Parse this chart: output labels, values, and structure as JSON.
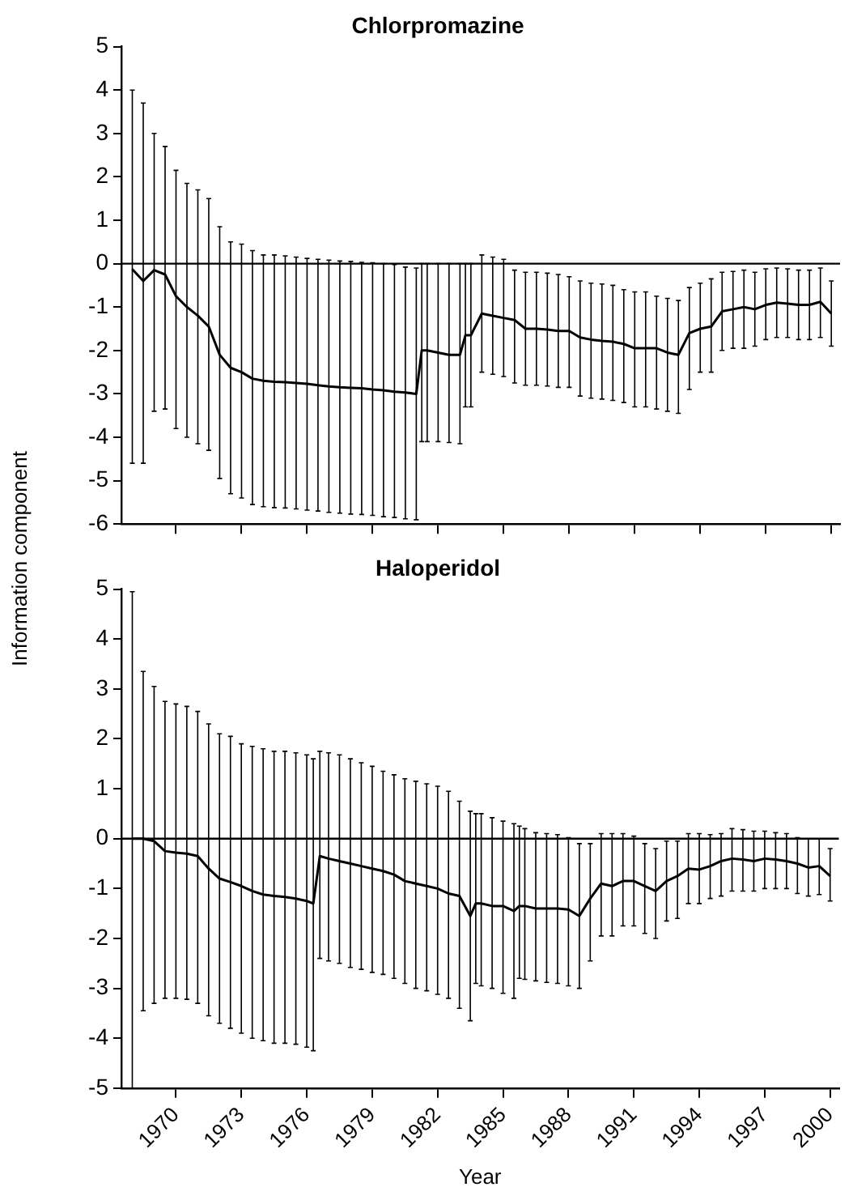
{
  "chart_data": [
    {
      "type": "line",
      "title": "Chlorpromazine",
      "ylabel": "Information component",
      "tick_labels": "y",
      "marker": "none",
      "line_style": "solid",
      "legend": false,
      "x": [
        1968,
        1968.5,
        1969,
        1969.5,
        1970,
        1970.5,
        1971,
        1971.5,
        1972,
        1972.5,
        1973,
        1973.5,
        1974,
        1974.5,
        1975,
        1975.5,
        1976,
        1976.5,
        1977,
        1977.5,
        1978,
        1978.5,
        1979,
        1979.5,
        1980,
        1980.5,
        1981,
        1981.25,
        1981.5,
        1982,
        1982.5,
        1983,
        1983.25,
        1983.5,
        1984,
        1984.5,
        1985,
        1985.5,
        1986,
        1986.5,
        1987,
        1987.5,
        1988,
        1988.5,
        1989,
        1989.5,
        1990,
        1990.5,
        1991,
        1991.5,
        1992,
        1992.5,
        1993,
        1993.5,
        1994,
        1994.5,
        1995,
        1995.5,
        1996,
        1996.5,
        1997,
        1997.5,
        1998,
        1998.5,
        1999,
        1999.5,
        2000
      ],
      "series": [
        {
          "color": "#000000",
          "values": [
            -0.13,
            -0.4,
            -0.15,
            -0.25,
            -0.75,
            -1.0,
            -1.2,
            -1.45,
            -2.1,
            -2.4,
            -2.5,
            -2.65,
            -2.7,
            -2.72,
            -2.73,
            -2.75,
            -2.77,
            -2.8,
            -2.83,
            -2.85,
            -2.86,
            -2.87,
            -2.9,
            -2.92,
            -2.95,
            -2.97,
            -3.0,
            -2.0,
            -2.0,
            -2.05,
            -2.1,
            -2.1,
            -1.65,
            -1.65,
            -1.15,
            -1.2,
            -1.25,
            -1.3,
            -1.5,
            -1.5,
            -1.52,
            -1.55,
            -1.55,
            -1.7,
            -1.75,
            -1.78,
            -1.8,
            -1.85,
            -1.95,
            -1.95,
            -1.95,
            -2.05,
            -2.1,
            -1.6,
            -1.5,
            -1.45,
            -1.1,
            -1.05,
            -1.0,
            -1.05,
            -0.95,
            -0.9,
            -0.92,
            -0.95,
            -0.95,
            -0.88,
            -1.15
          ],
          "errors": [
            [
              -4.6,
              4.0
            ],
            [
              -4.6,
              3.7
            ],
            [
              -3.4,
              3.0
            ],
            [
              -3.35,
              2.7
            ],
            [
              -3.8,
              2.15
            ],
            [
              -4.0,
              1.85
            ],
            [
              -4.15,
              1.7
            ],
            [
              -4.3,
              1.5
            ],
            [
              -4.95,
              0.85
            ],
            [
              -5.3,
              0.5
            ],
            [
              -5.4,
              0.45
            ],
            [
              -5.55,
              0.3
            ],
            [
              -5.6,
              0.2
            ],
            [
              -5.62,
              0.2
            ],
            [
              -5.63,
              0.18
            ],
            [
              -5.65,
              0.15
            ],
            [
              -5.68,
              0.12
            ],
            [
              -5.7,
              0.1
            ],
            [
              -5.73,
              0.08
            ],
            [
              -5.75,
              0.06
            ],
            [
              -5.77,
              0.05
            ],
            [
              -5.78,
              0.03
            ],
            [
              -5.8,
              0.02
            ],
            [
              -5.83,
              0
            ],
            [
              -5.85,
              -0.02
            ],
            [
              -5.88,
              -0.08
            ],
            [
              -5.9,
              -0.1
            ],
            [
              -4.1,
              0
            ],
            [
              -4.1,
              0
            ],
            [
              -4.1,
              0
            ],
            [
              -4.12,
              0
            ],
            [
              -4.15,
              0
            ],
            [
              -3.3,
              0
            ],
            [
              -3.3,
              0
            ],
            [
              -2.5,
              0.2
            ],
            [
              -2.55,
              0.15
            ],
            [
              -2.6,
              0.1
            ],
            [
              -2.75,
              -0.15
            ],
            [
              -2.8,
              -0.2
            ],
            [
              -2.8,
              -0.2
            ],
            [
              -2.82,
              -0.22
            ],
            [
              -2.85,
              -0.25
            ],
            [
              -2.85,
              -0.3
            ],
            [
              -3.05,
              -0.4
            ],
            [
              -3.1,
              -0.45
            ],
            [
              -3.12,
              -0.47
            ],
            [
              -3.15,
              -0.5
            ],
            [
              -3.2,
              -0.6
            ],
            [
              -3.3,
              -0.65
            ],
            [
              -3.3,
              -0.65
            ],
            [
              -3.35,
              -0.75
            ],
            [
              -3.4,
              -0.8
            ],
            [
              -3.45,
              -0.85
            ],
            [
              -2.9,
              -0.55
            ],
            [
              -2.5,
              -0.45
            ],
            [
              -2.5,
              -0.35
            ],
            [
              -2.0,
              -0.2
            ],
            [
              -1.95,
              -0.18
            ],
            [
              -1.95,
              -0.15
            ],
            [
              -1.9,
              -0.2
            ],
            [
              -1.75,
              -0.12
            ],
            [
              -1.7,
              -0.1
            ],
            [
              -1.7,
              -0.12
            ],
            [
              -1.75,
              -0.15
            ],
            [
              -1.75,
              -0.15
            ],
            [
              -1.7,
              -0.1
            ],
            [
              -1.9,
              -0.4
            ]
          ]
        }
      ],
      "xlim": [
        1967.5,
        2000.4
      ],
      "xticks": [
        1970,
        1973,
        1976,
        1979,
        1982,
        1985,
        1988,
        1991,
        1994,
        1997,
        2000
      ],
      "ylim": [
        -6,
        5
      ],
      "yticks": [
        -6,
        -5,
        -4,
        -3,
        -2,
        -1,
        0,
        1,
        2,
        3,
        4,
        5
      ],
      "ref_lines": [
        {
          "axis": "y",
          "value": 0
        }
      ]
    },
    {
      "type": "line",
      "title": "Haloperidol",
      "xlabel": "Year",
      "marker": "none",
      "line_style": "solid",
      "legend": false,
      "x": [
        1968,
        1968.5,
        1969,
        1969.5,
        1970,
        1970.5,
        1971,
        1971.5,
        1972,
        1972.5,
        1973,
        1973.5,
        1974,
        1974.5,
        1975,
        1975.5,
        1976,
        1976.3,
        1976.6,
        1977,
        1977.5,
        1978,
        1978.5,
        1979,
        1979.5,
        1980,
        1980.5,
        1981,
        1981.5,
        1982,
        1982.5,
        1983,
        1983.5,
        1983.75,
        1984,
        1984.5,
        1985,
        1985.5,
        1985.75,
        1986,
        1986.5,
        1987,
        1987.5,
        1988,
        1988.5,
        1989,
        1989.5,
        1990,
        1990.5,
        1991,
        1991.5,
        1992,
        1992.5,
        1993,
        1993.5,
        1994,
        1994.5,
        1995,
        1995.5,
        1996,
        1996.5,
        1997,
        1997.5,
        1998,
        1998.5,
        1999,
        1999.5,
        2000
      ],
      "series": [
        {
          "color": "#000000",
          "values": [
            0,
            0,
            -0.05,
            -0.25,
            -0.28,
            -0.3,
            -0.35,
            -0.6,
            -0.8,
            -0.87,
            -0.95,
            -1.05,
            -1.12,
            -1.15,
            -1.17,
            -1.2,
            -1.25,
            -1.3,
            -0.35,
            -0.4,
            -0.45,
            -0.5,
            -0.55,
            -0.6,
            -0.65,
            -0.72,
            -0.85,
            -0.9,
            -0.95,
            -1.0,
            -1.1,
            -1.15,
            -1.55,
            -1.3,
            -1.3,
            -1.35,
            -1.35,
            -1.45,
            -1.35,
            -1.35,
            -1.4,
            -1.4,
            -1.4,
            -1.42,
            -1.55,
            -1.2,
            -0.9,
            -0.95,
            -0.85,
            -0.85,
            -0.95,
            -1.05,
            -0.85,
            -0.75,
            -0.6,
            -0.62,
            -0.55,
            -0.45,
            -0.4,
            -0.42,
            -0.45,
            -0.4,
            -0.42,
            -0.45,
            -0.5,
            -0.58,
            -0.55,
            -0.75
          ],
          "errors": [
            [
              -5.0,
              4.95
            ],
            [
              -3.45,
              3.35
            ],
            [
              -3.3,
              3.05
            ],
            [
              -3.2,
              2.75
            ],
            [
              -3.2,
              2.7
            ],
            [
              -3.22,
              2.65
            ],
            [
              -3.3,
              2.55
            ],
            [
              -3.55,
              2.3
            ],
            [
              -3.7,
              2.1
            ],
            [
              -3.8,
              2.05
            ],
            [
              -3.9,
              1.9
            ],
            [
              -4.0,
              1.85
            ],
            [
              -4.05,
              1.8
            ],
            [
              -4.1,
              1.75
            ],
            [
              -4.1,
              1.75
            ],
            [
              -4.12,
              1.72
            ],
            [
              -4.18,
              1.68
            ],
            [
              -4.25,
              1.6
            ],
            [
              -2.4,
              1.75
            ],
            [
              -2.45,
              1.72
            ],
            [
              -2.5,
              1.68
            ],
            [
              -2.58,
              1.6
            ],
            [
              -2.62,
              1.52
            ],
            [
              -2.68,
              1.45
            ],
            [
              -2.72,
              1.35
            ],
            [
              -2.8,
              1.28
            ],
            [
              -2.9,
              1.2
            ],
            [
              -3.0,
              1.15
            ],
            [
              -3.05,
              1.1
            ],
            [
              -3.12,
              1.05
            ],
            [
              -3.2,
              0.95
            ],
            [
              -3.4,
              0.75
            ],
            [
              -3.65,
              0.55
            ],
            [
              -2.9,
              0.5
            ],
            [
              -2.95,
              0.5
            ],
            [
              -3.0,
              0.42
            ],
            [
              -3.1,
              0.35
            ],
            [
              -3.2,
              0.3
            ],
            [
              -2.8,
              0.25
            ],
            [
              -2.82,
              0.2
            ],
            [
              -2.85,
              0.12
            ],
            [
              -2.88,
              0.1
            ],
            [
              -2.9,
              0.08
            ],
            [
              -2.95,
              0.02
            ],
            [
              -3.0,
              -0.1
            ],
            [
              -2.45,
              -0.1
            ],
            [
              -1.95,
              0.1
            ],
            [
              -1.95,
              0.1
            ],
            [
              -1.75,
              0.1
            ],
            [
              -1.75,
              0.05
            ],
            [
              -1.9,
              -0.1
            ],
            [
              -2.0,
              -0.2
            ],
            [
              -1.65,
              -0.05
            ],
            [
              -1.6,
              -0.05
            ],
            [
              -1.3,
              0.1
            ],
            [
              -1.3,
              0.1
            ],
            [
              -1.2,
              0.08
            ],
            [
              -1.15,
              0.1
            ],
            [
              -1.05,
              0.2
            ],
            [
              -1.05,
              0.18
            ],
            [
              -1.05,
              0.15
            ],
            [
              -1.0,
              0.15
            ],
            [
              -1.0,
              0.12
            ],
            [
              -1.0,
              0.1
            ],
            [
              -1.1,
              0.02
            ],
            [
              -1.15,
              0
            ],
            [
              -1.12,
              0
            ],
            [
              -1.25,
              -0.2
            ]
          ]
        }
      ],
      "xlim": [
        1967.5,
        2000.4
      ],
      "xticks": [
        1970,
        1973,
        1976,
        1979,
        1982,
        1985,
        1988,
        1991,
        1994,
        1997,
        2000
      ],
      "ylim": [
        -5,
        5
      ],
      "yticks": [
        -5,
        -4,
        -3,
        -2,
        -1,
        0,
        1,
        2,
        3,
        4,
        5
      ],
      "ref_lines": [
        {
          "axis": "y",
          "value": 0
        }
      ]
    }
  ]
}
